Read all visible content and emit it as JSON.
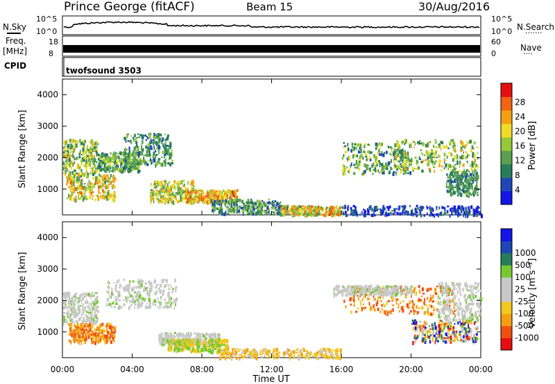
{
  "header": {
    "station": "Prince George (fitACF)",
    "beam": "Beam 15",
    "date": "30/Aug/2016"
  },
  "strip_labels": {
    "nsky": "N.Sky",
    "nsearch": "N.Search",
    "nsearch_dots": "·······",
    "freq": "Freq.",
    "freq_unit": "[MHz]",
    "nave": "Nave",
    "nave_dots": "····",
    "cpid": "CPID",
    "cpid_value": "twofsound 3503",
    "noise_left_ticks": [
      "10^5",
      "10^0"
    ],
    "noise_right_ticks": [
      "10^5",
      "10^0"
    ],
    "freq_ticks": [
      "18",
      "8"
    ],
    "nave_ticks": [
      "60",
      "0"
    ]
  },
  "colors": {
    "power_scale": [
      "#1414e6",
      "#1e46b4",
      "#2a7d5a",
      "#5aa050",
      "#96c83c",
      "#f0dc28",
      "#f5a014",
      "#f06414",
      "#e60f0f"
    ],
    "velocity_scale": [
      "#e60f0f",
      "#f05014",
      "#f5a014",
      "#f0c81e",
      "#c8c8c8",
      "#c8c8c8",
      "#78c832",
      "#2a7d5a",
      "#1e46b4",
      "#1414e6"
    ]
  },
  "chart_data": [
    {
      "type": "heatmap",
      "name": "power-panel",
      "ylabel": "Slant Range [km]",
      "xlabel": "",
      "x_ticks": [
        "00:00",
        "04:00",
        "08:00",
        "12:00",
        "16:00",
        "20:00",
        "00:00"
      ],
      "y_ticks": [
        1000,
        2000,
        3000,
        4000
      ],
      "ylim": [
        180,
        4500
      ],
      "xlim_hours": [
        0,
        24
      ],
      "colorbar": {
        "label": "Power [dB]",
        "ticks": [
          "4",
          "8",
          "12",
          "16",
          "20",
          "24",
          "28"
        ],
        "range": [
          0,
          31
        ]
      },
      "echo_bands": [
        {
          "t0": 0.0,
          "t1": 2.0,
          "r0": 1500,
          "r1": 2600,
          "p0": 8,
          "p1": 22
        },
        {
          "t0": 0.2,
          "t1": 3.0,
          "r0": 700,
          "r1": 1500,
          "p0": 10,
          "p1": 26
        },
        {
          "t0": 2.0,
          "t1": 4.5,
          "r0": 1600,
          "r1": 2200,
          "p0": 6,
          "p1": 18
        },
        {
          "t0": 3.5,
          "t1": 6.3,
          "r0": 1800,
          "r1": 2800,
          "p0": 6,
          "p1": 16
        },
        {
          "t0": 5.0,
          "t1": 7.5,
          "r0": 600,
          "r1": 1300,
          "p0": 10,
          "p1": 24
        },
        {
          "t0": 7.0,
          "t1": 10.0,
          "r0": 600,
          "r1": 1000,
          "p0": 14,
          "p1": 28
        },
        {
          "t0": 8.5,
          "t1": 12.5,
          "r0": 250,
          "r1": 700,
          "p0": 4,
          "p1": 16
        },
        {
          "t0": 12.5,
          "t1": 16.0,
          "r0": 200,
          "r1": 500,
          "p0": 10,
          "p1": 28
        },
        {
          "t0": 16.0,
          "t1": 20.0,
          "r0": 1500,
          "r1": 2500,
          "p0": 6,
          "p1": 20
        },
        {
          "t0": 19.0,
          "t1": 23.8,
          "r0": 1600,
          "r1": 2600,
          "p0": 8,
          "p1": 22
        },
        {
          "t0": 16.0,
          "t1": 24.0,
          "r0": 200,
          "r1": 500,
          "p0": 2,
          "p1": 8
        },
        {
          "t0": 22.0,
          "t1": 23.8,
          "r0": 800,
          "r1": 1600,
          "p0": 6,
          "p1": 14
        }
      ]
    },
    {
      "type": "heatmap",
      "name": "velocity-panel",
      "ylabel": "Slant Range [km]",
      "xlabel": "Time UT",
      "x_ticks": [
        "00:00",
        "04:00",
        "08:00",
        "12:00",
        "16:00",
        "20:00",
        "00:00"
      ],
      "y_ticks": [
        1000,
        2000,
        3000,
        4000
      ],
      "ylim": [
        180,
        4500
      ],
      "xlim_hours": [
        0,
        24
      ],
      "colorbar": {
        "label": "Velocity [m s⁻¹]",
        "ticks": [
          "-1000",
          "-500",
          "-100",
          "-25",
          "25",
          "100",
          "500",
          "1000"
        ]
      },
      "echo_bands": [
        {
          "t0": 0.0,
          "t1": 2.0,
          "r0": 1300,
          "r1": 2300,
          "v": "ground"
        },
        {
          "t0": 0.3,
          "t1": 3.0,
          "r0": 700,
          "r1": 1300,
          "v": "away"
        },
        {
          "t0": 2.5,
          "t1": 6.5,
          "r0": 1800,
          "r1": 2700,
          "v": "ground"
        },
        {
          "t0": 5.5,
          "t1": 9.0,
          "r0": 600,
          "r1": 1000,
          "v": "ground"
        },
        {
          "t0": 6.0,
          "t1": 9.5,
          "r0": 400,
          "r1": 800,
          "v": "slow"
        },
        {
          "t0": 9.0,
          "t1": 16.0,
          "r0": 200,
          "r1": 500,
          "v": "slow-away"
        },
        {
          "t0": 16.0,
          "t1": 22.5,
          "r0": 1600,
          "r1": 2500,
          "v": "away"
        },
        {
          "t0": 15.5,
          "t1": 20.0,
          "r0": 2200,
          "r1": 2500,
          "v": "ground"
        },
        {
          "t0": 21.5,
          "t1": 24.0,
          "r0": 1400,
          "r1": 2600,
          "v": "ground"
        },
        {
          "t0": 20.0,
          "t1": 23.8,
          "r0": 700,
          "r1": 1400,
          "v": "mixed"
        }
      ]
    }
  ]
}
